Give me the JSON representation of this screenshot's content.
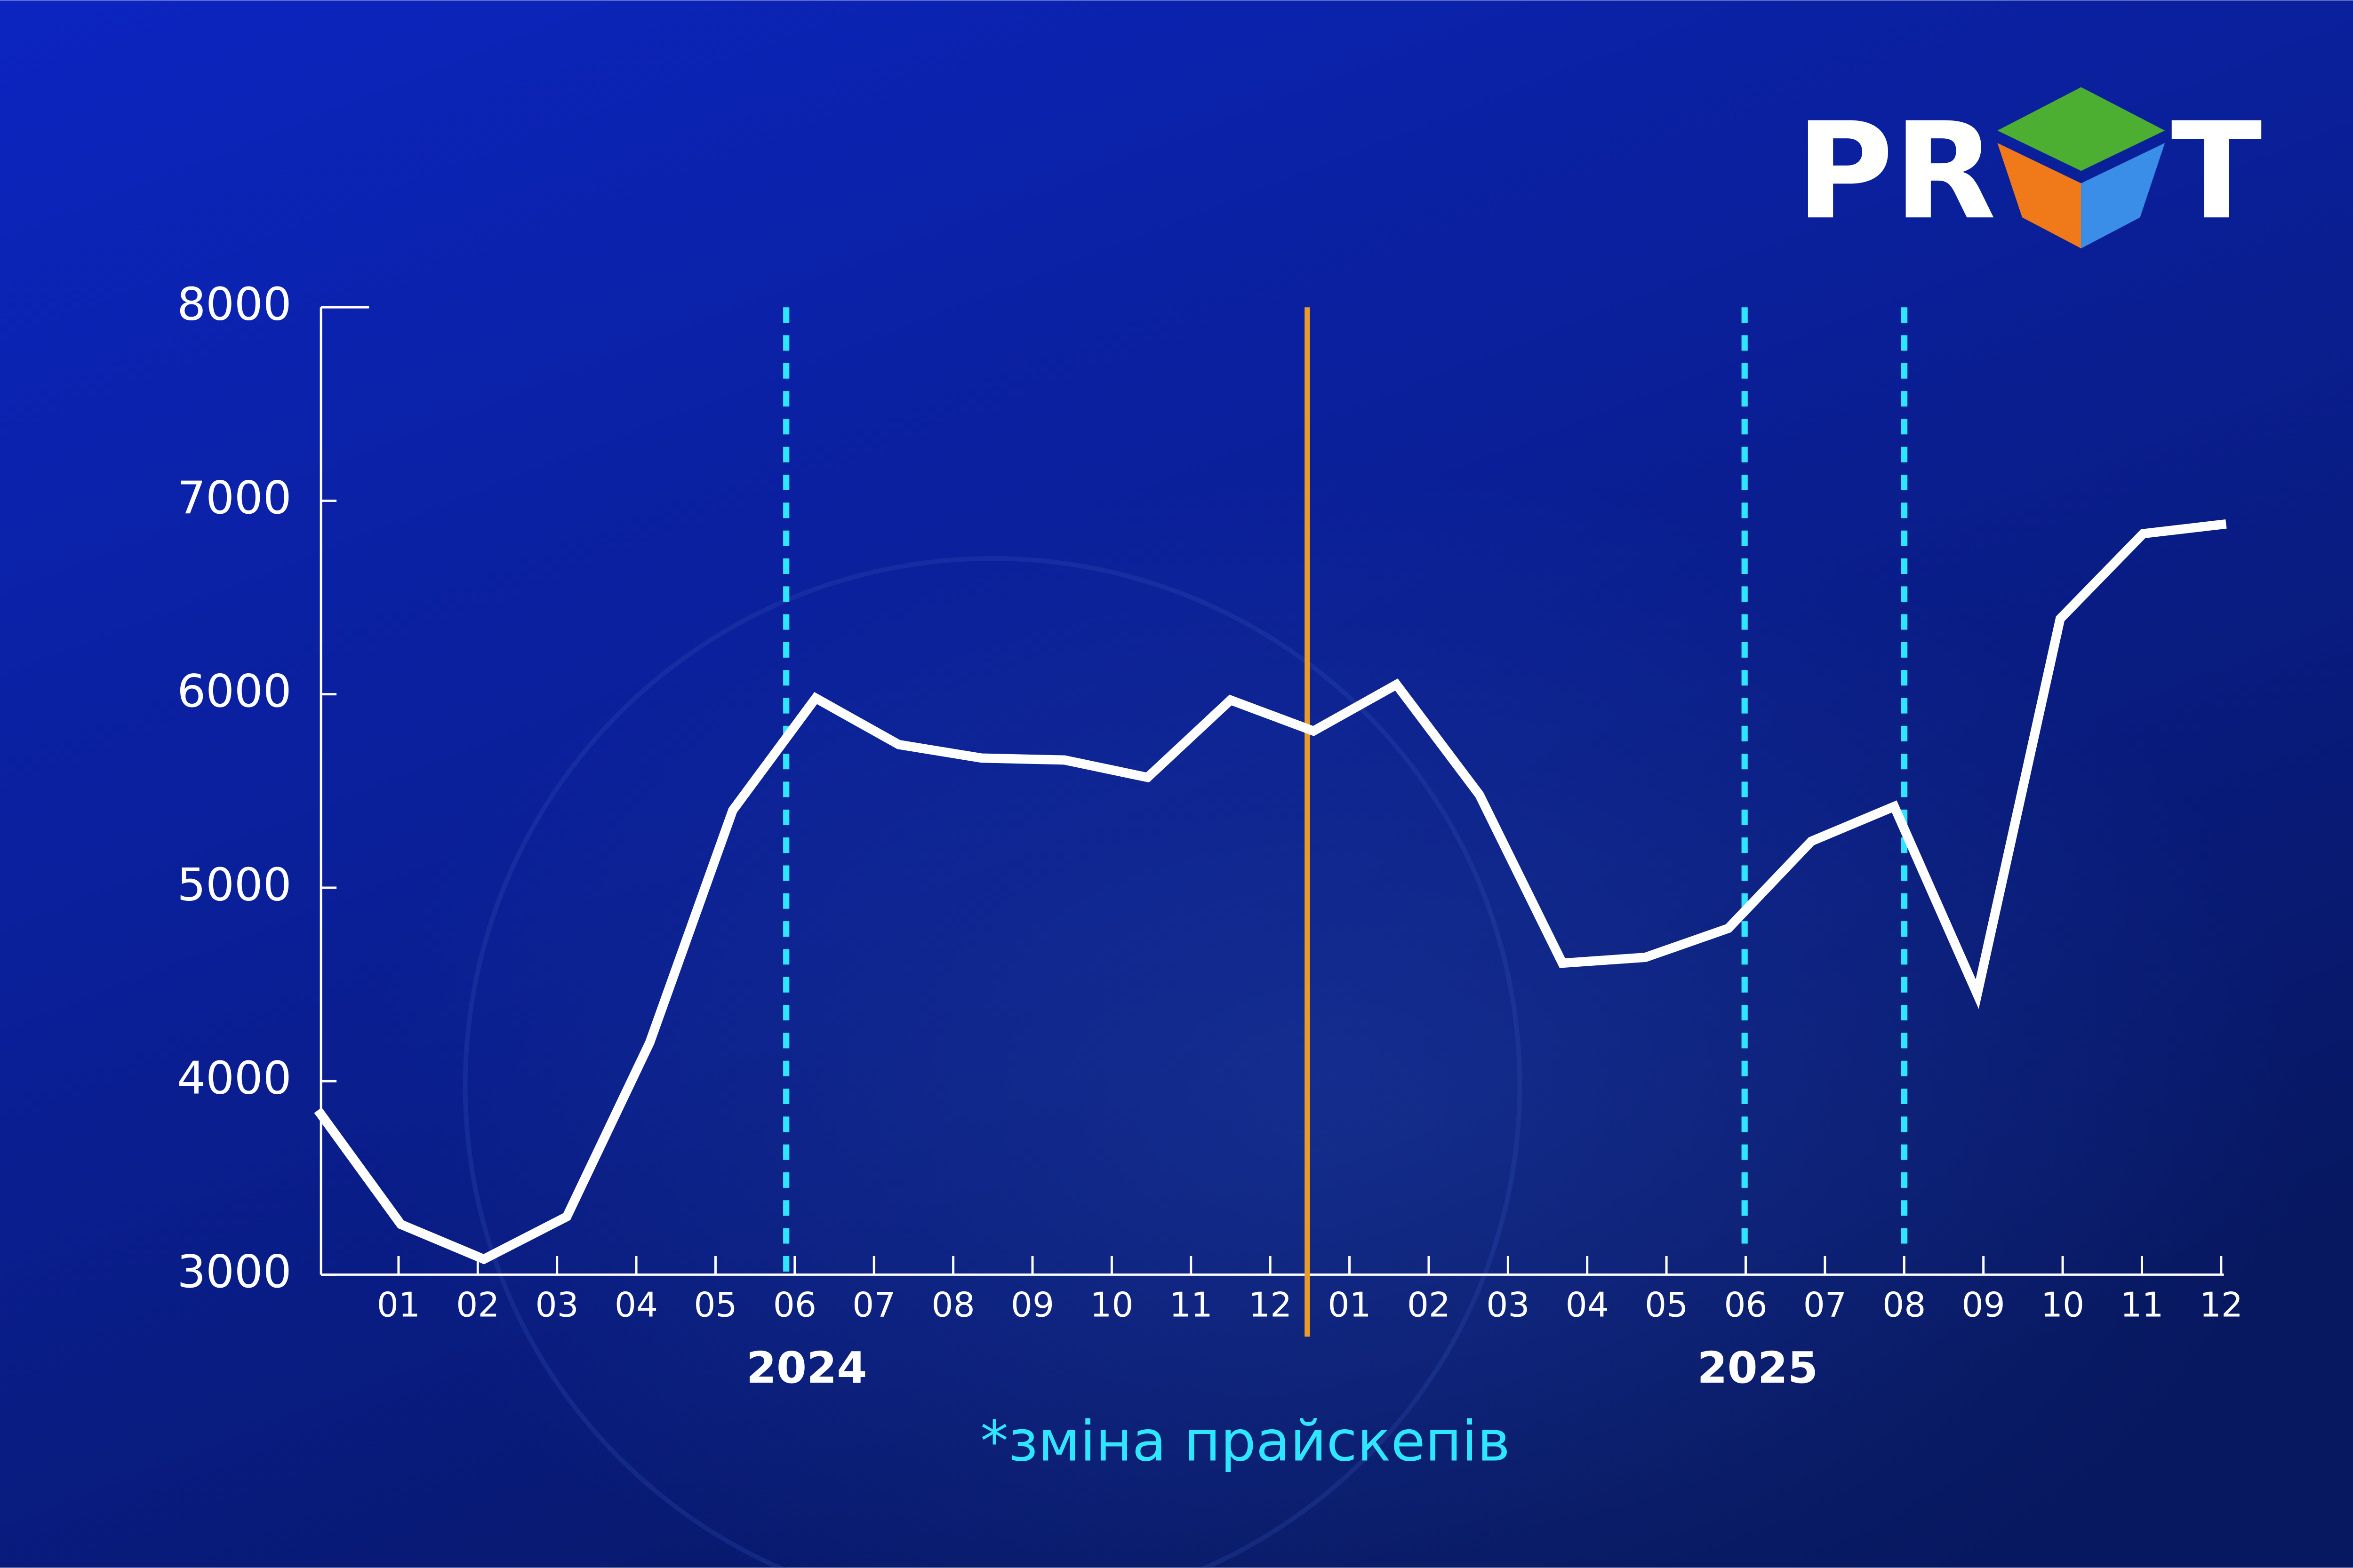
{
  "chart_data": {
    "type": "line",
    "categories": [
      "01",
      "02",
      "03",
      "04",
      "05",
      "06",
      "07",
      "08",
      "09",
      "10",
      "11",
      "12",
      "01",
      "02",
      "03",
      "04",
      "05",
      "06",
      "07",
      "08",
      "09",
      "10",
      "11",
      "12"
    ],
    "groups": [
      "2024",
      "2025"
    ],
    "values": [
      3850,
      3260,
      3080,
      3300,
      4200,
      5400,
      5980,
      5740,
      5670,
      5660,
      5570,
      5970,
      5810,
      6050,
      5480,
      4610,
      4640,
      4790,
      5240,
      5420,
      4450,
      6390,
      6830,
      6880
    ],
    "color": "#ffffff",
    "ylim": [
      3000,
      8000
    ],
    "yticks": [
      3000,
      4000,
      5000,
      6000,
      7000,
      8000
    ],
    "annotation": "*зміна прайскепів"
  },
  "logo": [
    "PR",
    "T"
  ]
}
